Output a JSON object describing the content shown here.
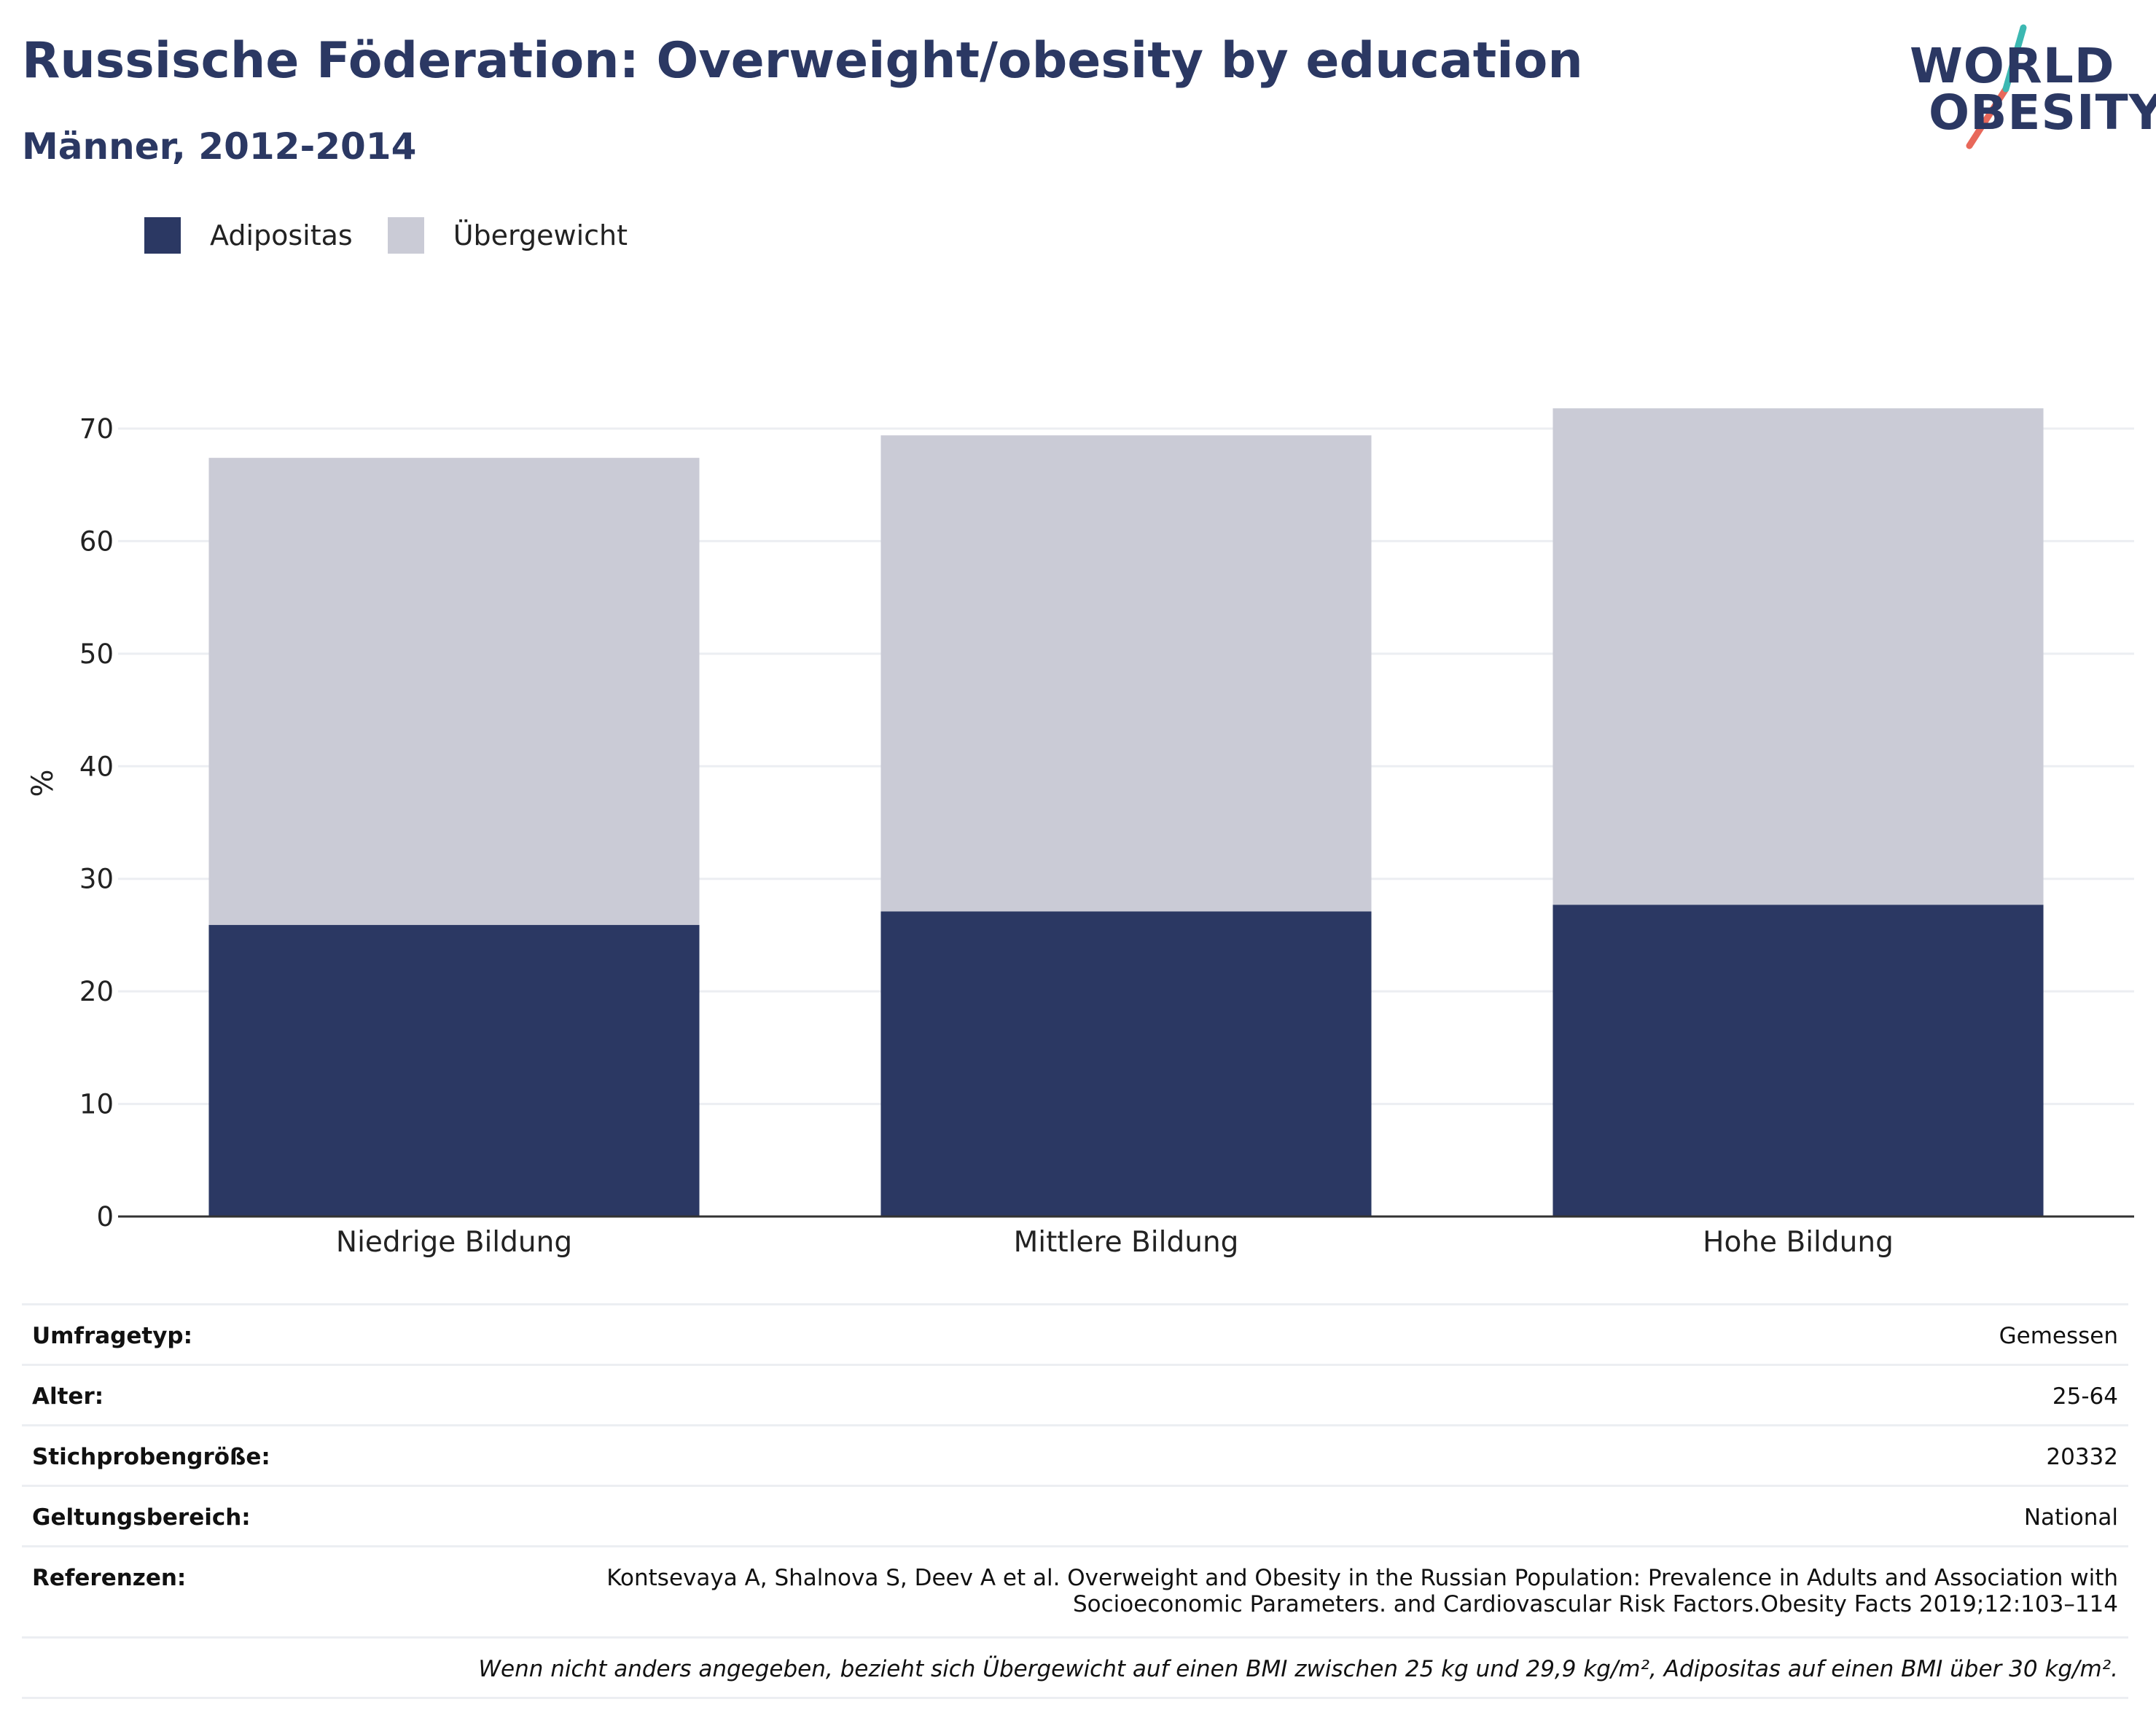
{
  "header": {
    "title": "Russische Föderation: Overweight/obesity by education",
    "subtitle": "Männer, 2012-2014"
  },
  "logo": {
    "line1": "WORLD",
    "line2": "OBESITY",
    "slash_colors": [
      "#3cb8b2",
      "#e8685a"
    ]
  },
  "colors": {
    "adipositas": "#2b3863",
    "uebergewicht": "#cacbd6",
    "title": "#2b3863",
    "grid": "#eceef2",
    "axis": "#333333"
  },
  "legend": [
    {
      "label": "Adipositas",
      "color": "#2b3863"
    },
    {
      "label": "Übergewicht",
      "color": "#cacbd6"
    }
  ],
  "chart_data": {
    "type": "bar",
    "stacked": true,
    "categories": [
      "Niedrige Bildung",
      "Mittlere Bildung",
      "Hohe Bildung"
    ],
    "series": [
      {
        "name": "Adipositas",
        "values": [
          25.9,
          27.1,
          27.7
        ]
      },
      {
        "name": "Übergewicht",
        "values": [
          41.5,
          42.3,
          44.1
        ]
      }
    ],
    "ylabel": "%",
    "xlabel": "",
    "ylim": [
      0,
      70
    ],
    "yticks": [
      0,
      10,
      20,
      30,
      40,
      50,
      60,
      70
    ],
    "grid": true,
    "legend_position": "top-left"
  },
  "meta": {
    "rows": [
      {
        "key": "Umfragetyp:",
        "value": "Gemessen"
      },
      {
        "key": "Alter:",
        "value": "25-64"
      },
      {
        "key": "Stichprobengröße:",
        "value": "20332"
      },
      {
        "key": "Geltungsbereich:",
        "value": "National"
      }
    ],
    "reference_key": "Referenzen:",
    "reference_line1": "Kontsevaya A, Shalnova S, Deev A et al. Overweight and Obesity in the Russian Population: Prevalence in Adults and Association with",
    "reference_line2": "Socioeconomic Parameters. and Cardiovascular Risk Factors.Obesity Facts 2019;12:103–114",
    "note": "Wenn nicht anders angegeben, bezieht sich Übergewicht auf einen BMI zwischen 25 kg und 29,9 kg/m², Adipositas auf einen BMI über 30 kg/m²."
  }
}
